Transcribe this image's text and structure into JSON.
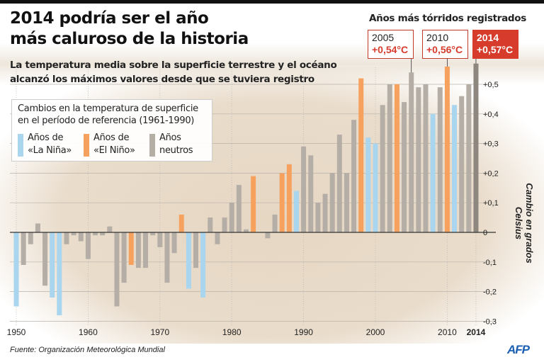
{
  "title_line1": "2014 podría ser el año",
  "title_line2": "más caluroso de la historia",
  "subtitle_line1": "La temperatura media sobre la superficie terrestre y el océano",
  "subtitle_line2": "alcanzó los máximos valores desde que se tuviera registro",
  "legend": {
    "title_line1": "Cambios en la temperatura de superficie",
    "title_line2": "en el período de referencia (1961-1990)",
    "items": [
      {
        "line1": "Años de",
        "line2": "«La Niña»",
        "color": "#a9d5ee"
      },
      {
        "line1": "Años de",
        "line2": "«El Niño»",
        "color": "#f7a15e"
      },
      {
        "line1": "Años",
        "line2": "neutros",
        "color": "#b5aea6"
      }
    ]
  },
  "hottest": {
    "title": "Años más tórridos registrados",
    "items": [
      {
        "year": "2005",
        "value": "+0,54°C"
      },
      {
        "year": "2010",
        "value": "+0,56°C"
      },
      {
        "year": "2014",
        "value": "+0,57°C"
      }
    ]
  },
  "source": "Fuente: Organización Meteorológica Mundial",
  "logo": "AFP",
  "chart_data": {
    "type": "bar",
    "ylabel": "Cambio en grados Celsius",
    "ylim": [
      -0.3,
      0.6
    ],
    "grid": true,
    "x_ticks": [
      "1950",
      "1960",
      "1970",
      "1980",
      "1990",
      "2000",
      "2010",
      "2014"
    ],
    "y_ticks": [
      "+0,5",
      "+0,4",
      "+0,3",
      "+0,2",
      "+0,1",
      "0",
      "-0,1",
      "-0,2",
      "-0,3"
    ],
    "colors": {
      "N": "#a9d5ee",
      "E": "#f7a15e",
      "G": "#b5aea6",
      "2014": "#8e877f"
    },
    "years": [
      1950,
      1951,
      1952,
      1953,
      1954,
      1955,
      1956,
      1957,
      1958,
      1959,
      1960,
      1961,
      1962,
      1963,
      1964,
      1965,
      1966,
      1967,
      1968,
      1969,
      1970,
      1971,
      1972,
      1973,
      1974,
      1975,
      1976,
      1977,
      1978,
      1979,
      1980,
      1981,
      1982,
      1983,
      1984,
      1985,
      1986,
      1987,
      1988,
      1989,
      1990,
      1991,
      1992,
      1993,
      1994,
      1995,
      1996,
      1997,
      1998,
      1999,
      2000,
      2001,
      2002,
      2003,
      2004,
      2005,
      2006,
      2007,
      2008,
      2009,
      2010,
      2011,
      2012,
      2013,
      2014
    ],
    "values": [
      -0.25,
      -0.11,
      -0.04,
      0.03,
      -0.18,
      -0.22,
      -0.28,
      -0.04,
      -0.01,
      -0.03,
      -0.09,
      -0.01,
      -0.01,
      0.02,
      -0.25,
      -0.17,
      -0.11,
      -0.12,
      -0.12,
      -0.01,
      -0.05,
      -0.17,
      -0.07,
      0.06,
      -0.19,
      -0.12,
      -0.22,
      0.05,
      -0.04,
      0.05,
      0.1,
      0.16,
      0.01,
      0.19,
      0.0,
      -0.02,
      0.06,
      0.2,
      0.23,
      0.14,
      0.29,
      0.26,
      0.1,
      0.13,
      0.2,
      0.33,
      0.2,
      0.38,
      0.52,
      0.32,
      0.3,
      0.43,
      0.5,
      0.5,
      0.44,
      0.54,
      0.49,
      0.5,
      0.4,
      0.49,
      0.56,
      0.43,
      0.46,
      0.5,
      0.57
    ],
    "kinds": [
      "N",
      "G",
      "G",
      "G",
      "G",
      "N",
      "N",
      "G",
      "G",
      "G",
      "G",
      "G",
      "G",
      "G",
      "G",
      "G",
      "E",
      "G",
      "G",
      "G",
      "G",
      "G",
      "G",
      "E",
      "N",
      "G",
      "N",
      "G",
      "G",
      "G",
      "G",
      "G",
      "G",
      "E",
      "G",
      "G",
      "G",
      "E",
      "E",
      "N",
      "G",
      "G",
      "G",
      "G",
      "G",
      "G",
      "G",
      "G",
      "E",
      "N",
      "N",
      "G",
      "G",
      "E",
      "G",
      "G",
      "G",
      "G",
      "N",
      "G",
      "E",
      "N",
      "G",
      "G",
      "2014"
    ]
  }
}
